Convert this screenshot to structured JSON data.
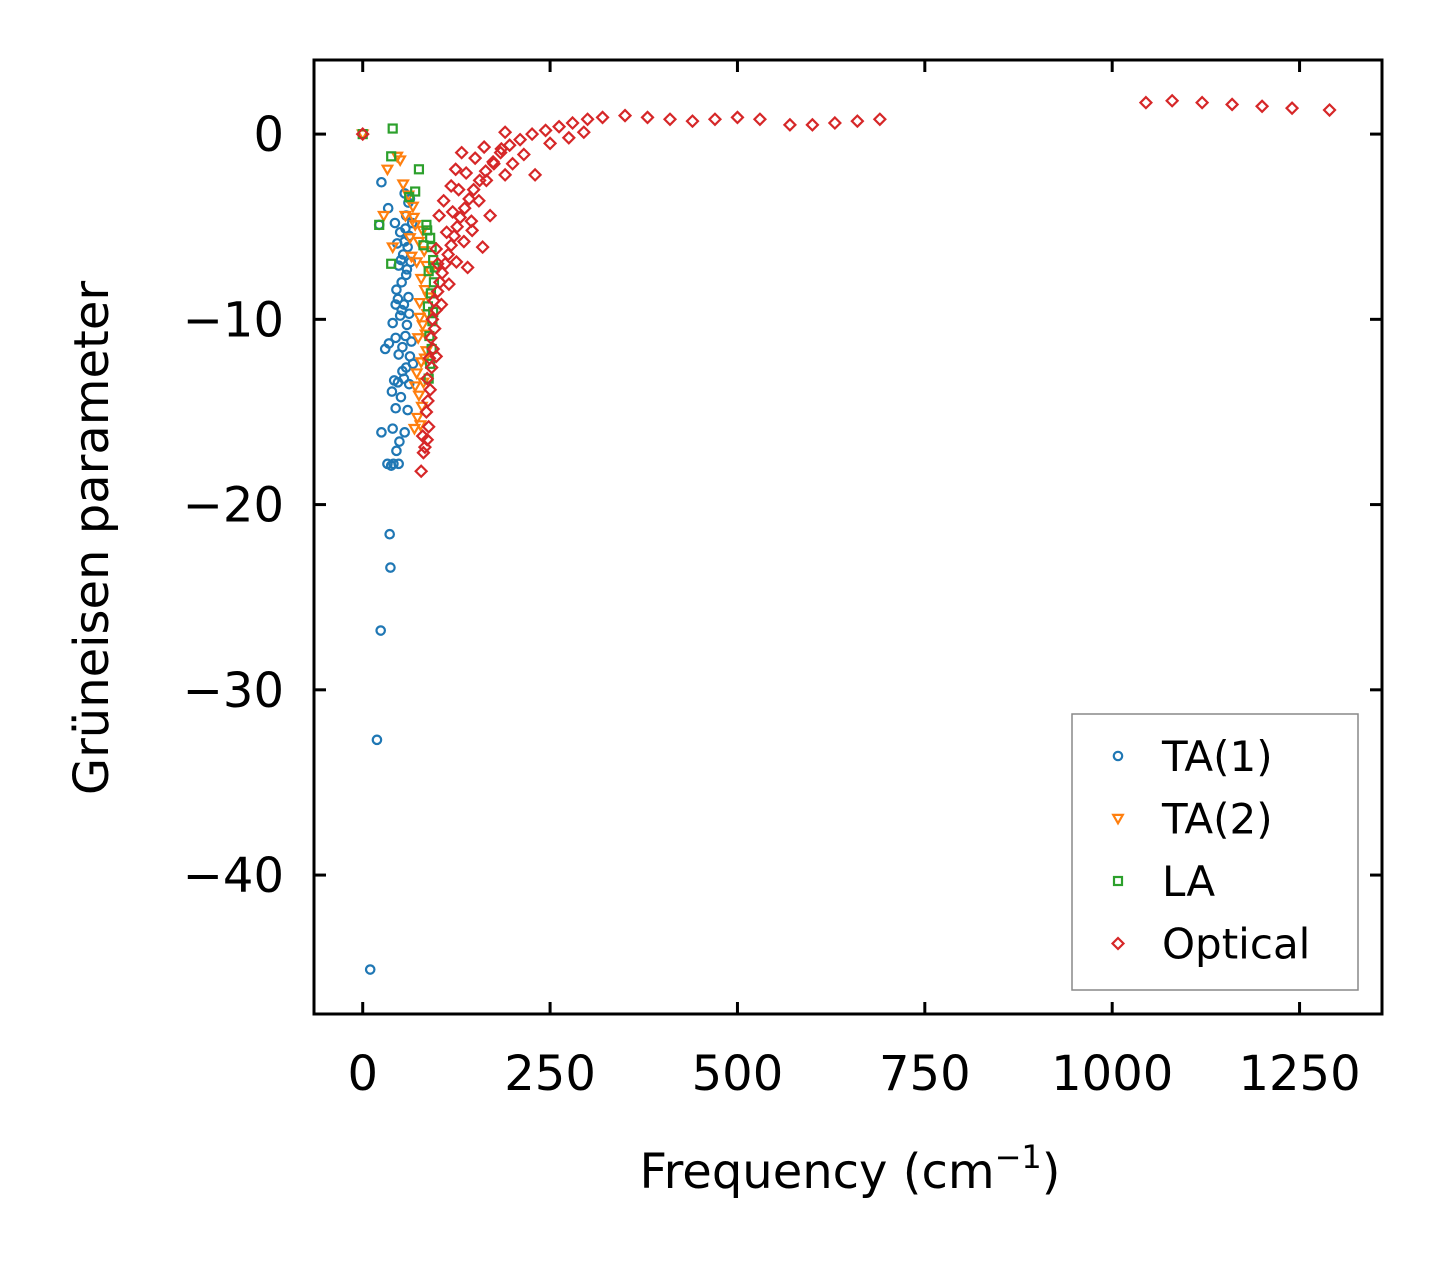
{
  "chart_data": {
    "type": "scatter",
    "title": "",
    "xlabel": "Frequency (cm",
    "xlabel_sup": "−1",
    "xlabel_suffix": ")",
    "ylabel": "Grüneisen parameter",
    "xlim": [
      -65,
      1360
    ],
    "ylim": [
      -47.5,
      4.0
    ],
    "xticks": [
      0,
      250,
      500,
      750,
      1000,
      1250
    ],
    "xtick_labels": [
      "0",
      "250",
      "500",
      "750",
      "1000",
      "1250"
    ],
    "yticks": [
      0,
      -10,
      -20,
      -30,
      -40
    ],
    "ytick_labels": [
      "0",
      "−10",
      "−20",
      "−30",
      "−40"
    ],
    "grid": false,
    "legend_position": "bottom-right",
    "series": [
      {
        "name": "TA(1)",
        "marker": "circle",
        "color": "#1f77b4",
        "points": [
          [
            0,
            0
          ],
          [
            10,
            -45.1
          ],
          [
            19,
            -32.7
          ],
          [
            24,
            -26.8
          ],
          [
            37,
            -23.4
          ],
          [
            36,
            -21.6
          ],
          [
            38,
            -17.9
          ],
          [
            41,
            -17.8
          ],
          [
            48,
            -17.8
          ],
          [
            33,
            -17.8
          ],
          [
            25,
            -16.1
          ],
          [
            40,
            -15.9
          ],
          [
            49,
            -16.6
          ],
          [
            56,
            -16.1
          ],
          [
            45,
            -17.1
          ],
          [
            44,
            -14.8
          ],
          [
            60,
            -14.9
          ],
          [
            51,
            -14.2
          ],
          [
            39,
            -13.9
          ],
          [
            55,
            -13.2
          ],
          [
            47,
            -13.4
          ],
          [
            42,
            -13.3
          ],
          [
            62,
            -13.5
          ],
          [
            35,
            -11.3
          ],
          [
            30,
            -11.6
          ],
          [
            58,
            -12.6
          ],
          [
            48,
            -11.9
          ],
          [
            53,
            -11.5
          ],
          [
            63,
            -12.0
          ],
          [
            44,
            -11.0
          ],
          [
            57,
            -10.9
          ],
          [
            40,
            -10.2
          ],
          [
            50,
            -9.8
          ],
          [
            55,
            -9.2
          ],
          [
            61,
            -8.8
          ],
          [
            45,
            -8.4
          ],
          [
            52,
            -8.0
          ],
          [
            58,
            -7.6
          ],
          [
            48,
            -7.1
          ],
          [
            64,
            -6.9
          ],
          [
            54,
            -6.5
          ],
          [
            60,
            -6.1
          ],
          [
            46,
            -5.9
          ],
          [
            62,
            -5.5
          ],
          [
            57,
            -5.1
          ],
          [
            50,
            -5.3
          ],
          [
            66,
            -4.8
          ],
          [
            58,
            -4.4
          ],
          [
            43,
            -4.8
          ],
          [
            34,
            -4.0
          ],
          [
            22,
            -4.9
          ],
          [
            61,
            -3.7
          ],
          [
            56,
            -3.2
          ],
          [
            63,
            -3.5
          ],
          [
            25,
            -2.6
          ],
          [
            52,
            -9.5
          ],
          [
            59,
            -10.3
          ],
          [
            65,
            -11.2
          ],
          [
            53,
            -12.8
          ],
          [
            47,
            -8.9
          ],
          [
            51,
            -6.8
          ],
          [
            56,
            -5.8
          ],
          [
            59,
            -7.3
          ],
          [
            62,
            -9.7
          ],
          [
            67,
            -12.4
          ],
          [
            44,
            -9.2
          ]
        ]
      },
      {
        "name": "TA(2)",
        "marker": "triangle-down",
        "color": "#ff7f0e",
        "points": [
          [
            0,
            0
          ],
          [
            46,
            -1.2
          ],
          [
            50,
            -1.4
          ],
          [
            33,
            -1.9
          ],
          [
            54,
            -2.7
          ],
          [
            61,
            -3.3
          ],
          [
            67,
            -3.9
          ],
          [
            28,
            -4.4
          ],
          [
            57,
            -4.4
          ],
          [
            70,
            -4.9
          ],
          [
            80,
            -5.2
          ],
          [
            75,
            -5.8
          ],
          [
            40,
            -6.1
          ],
          [
            63,
            -5.6
          ],
          [
            82,
            -6.3
          ],
          [
            72,
            -6.9
          ],
          [
            85,
            -7.1
          ],
          [
            78,
            -7.8
          ],
          [
            83,
            -8.4
          ],
          [
            76,
            -9.1
          ],
          [
            86,
            -9.7
          ],
          [
            80,
            -10.3
          ],
          [
            74,
            -11.0
          ],
          [
            85,
            -11.7
          ],
          [
            78,
            -12.3
          ],
          [
            72,
            -12.9
          ],
          [
            81,
            -13.4
          ],
          [
            75,
            -14.1
          ],
          [
            79,
            -14.7
          ],
          [
            73,
            -15.3
          ],
          [
            77,
            -15.7
          ],
          [
            69,
            -15.9
          ],
          [
            83,
            -12.1
          ],
          [
            70,
            -13.6
          ],
          [
            84,
            -10.8
          ],
          [
            76,
            -9.9
          ],
          [
            68,
            -4.5
          ],
          [
            88,
            -8.8
          ],
          [
            65,
            -6.6
          ],
          [
            90,
            -7.4
          ]
        ]
      },
      {
        "name": "LA",
        "marker": "square",
        "color": "#2ca02c",
        "points": [
          [
            0,
            0
          ],
          [
            40,
            0.3
          ],
          [
            38,
            -1.2
          ],
          [
            75,
            -1.9
          ],
          [
            70,
            -3.1
          ],
          [
            62,
            -3.4
          ],
          [
            38,
            -7.0
          ],
          [
            22,
            -4.9
          ],
          [
            85,
            -4.9
          ],
          [
            90,
            -5.6
          ],
          [
            92,
            -6.1
          ],
          [
            94,
            -6.8
          ],
          [
            88,
            -7.4
          ],
          [
            95,
            -8.0
          ],
          [
            91,
            -8.6
          ],
          [
            87,
            -9.3
          ],
          [
            93,
            -10.1
          ],
          [
            89,
            -10.9
          ],
          [
            92,
            -11.6
          ],
          [
            90,
            -12.4
          ],
          [
            88,
            -13.2
          ],
          [
            94,
            -9.6
          ],
          [
            86,
            -5.2
          ],
          [
            96,
            -7.2
          ],
          [
            81,
            -6.0
          ]
        ]
      },
      {
        "name": "Optical",
        "marker": "diamond",
        "color": "#d62728",
        "points": [
          [
            0,
            0
          ],
          [
            78,
            -18.2
          ],
          [
            81,
            -17.2
          ],
          [
            83,
            -16.9
          ],
          [
            86,
            -16.5
          ],
          [
            80,
            -16.3
          ],
          [
            88,
            -15.8
          ],
          [
            85,
            -15.0
          ],
          [
            87,
            -14.4
          ],
          [
            90,
            -13.8
          ],
          [
            86,
            -13.2
          ],
          [
            92,
            -12.6
          ],
          [
            89,
            -12.1
          ],
          [
            94,
            -11.6
          ],
          [
            91,
            -11.0
          ],
          [
            96,
            -10.5
          ],
          [
            93,
            -10.0
          ],
          [
            98,
            -9.5
          ],
          [
            95,
            -9.0
          ],
          [
            100,
            -8.5
          ],
          [
            103,
            -8.0
          ],
          [
            106,
            -7.5
          ],
          [
            110,
            -7.0
          ],
          [
            114,
            -6.5
          ],
          [
            118,
            -6.0
          ],
          [
            122,
            -5.5
          ],
          [
            126,
            -5.0
          ],
          [
            130,
            -4.5
          ],
          [
            136,
            -4.0
          ],
          [
            142,
            -3.5
          ],
          [
            148,
            -3.0
          ],
          [
            156,
            -2.5
          ],
          [
            164,
            -2.0
          ],
          [
            174,
            -1.5
          ],
          [
            184,
            -1.0
          ],
          [
            196,
            -0.6
          ],
          [
            210,
            -0.3
          ],
          [
            226,
            0.0
          ],
          [
            244,
            0.2
          ],
          [
            262,
            0.4
          ],
          [
            280,
            0.6
          ],
          [
            300,
            0.8
          ],
          [
            320,
            0.9
          ],
          [
            350,
            1.0
          ],
          [
            380,
            0.9
          ],
          [
            410,
            0.8
          ],
          [
            440,
            0.7
          ],
          [
            470,
            0.8
          ],
          [
            500,
            0.9
          ],
          [
            530,
            0.8
          ],
          [
            570,
            0.5
          ],
          [
            600,
            0.5
          ],
          [
            630,
            0.6
          ],
          [
            660,
            0.7
          ],
          [
            690,
            0.8
          ],
          [
            1045,
            1.7
          ],
          [
            1080,
            1.8
          ],
          [
            1120,
            1.7
          ],
          [
            1160,
            1.6
          ],
          [
            1200,
            1.5
          ],
          [
            1240,
            1.4
          ],
          [
            1290,
            1.3
          ],
          [
            105,
            -9.2
          ],
          [
            115,
            -8.1
          ],
          [
            125,
            -6.9
          ],
          [
            135,
            -5.8
          ],
          [
            145,
            -4.7
          ],
          [
            155,
            -3.6
          ],
          [
            165,
            -2.5
          ],
          [
            175,
            -1.6
          ],
          [
            185,
            -0.8
          ],
          [
            112,
            -5.3
          ],
          [
            120,
            -4.2
          ],
          [
            128,
            -3.0
          ],
          [
            138,
            -2.1
          ],
          [
            150,
            -1.3
          ],
          [
            162,
            -0.7
          ],
          [
            170,
            -4.4
          ],
          [
            190,
            -2.2
          ],
          [
            200,
            -1.6
          ],
          [
            215,
            -1.1
          ],
          [
            230,
            -2.2
          ],
          [
            118,
            -2.8
          ],
          [
            124,
            -1.9
          ],
          [
            132,
            -1.0
          ],
          [
            108,
            -3.6
          ],
          [
            98,
            -6.2
          ],
          [
            102,
            -4.4
          ],
          [
            140,
            -7.2
          ],
          [
            160,
            -6.1
          ],
          [
            146,
            -5.2
          ],
          [
            190,
            0.1
          ],
          [
            250,
            -0.5
          ],
          [
            275,
            -0.2
          ],
          [
            295,
            0.1
          ],
          [
            98,
            -12.0
          ],
          [
            100,
            -7.0
          ]
        ]
      }
    ]
  }
}
